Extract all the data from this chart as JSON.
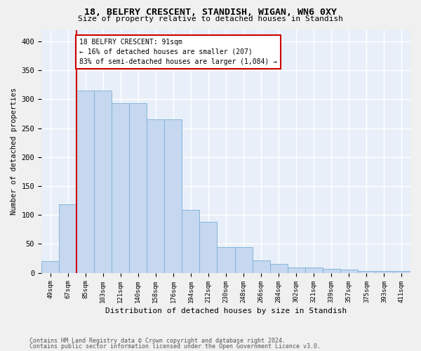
{
  "title1": "18, BELFRY CRESCENT, STANDISH, WIGAN, WN6 0XY",
  "title2": "Size of property relative to detached houses in Standish",
  "xlabel": "Distribution of detached houses by size in Standish",
  "ylabel": "Number of detached properties",
  "footer1": "Contains HM Land Registry data © Crown copyright and database right 2024.",
  "footer2": "Contains public sector information licensed under the Open Government Licence v3.0.",
  "bar_labels": [
    "49sqm",
    "67sqm",
    "85sqm",
    "103sqm",
    "121sqm",
    "140sqm",
    "158sqm",
    "176sqm",
    "194sqm",
    "212sqm",
    "230sqm",
    "248sqm",
    "266sqm",
    "284sqm",
    "302sqm",
    "321sqm",
    "339sqm",
    "357sqm",
    "375sqm",
    "393sqm",
    "411sqm"
  ],
  "bar_values": [
    20,
    119,
    315,
    315,
    293,
    293,
    265,
    265,
    109,
    88,
    44,
    44,
    21,
    15,
    9,
    9,
    7,
    5,
    3,
    3,
    3
  ],
  "bar_color": "#c5d8f0",
  "bar_edge_color": "#7bafd4",
  "bg_color": "#e8eff9",
  "grid_color": "#ffffff",
  "red_line_color": "#cc0000",
  "annotation_line1": "18 BELFRY CRESCENT: 91sqm",
  "annotation_line2": "← 16% of detached houses are smaller (207)",
  "annotation_line3": "83% of semi-detached houses are larger (1,084) →",
  "ylim": [
    0,
    420
  ],
  "yticks": [
    0,
    50,
    100,
    150,
    200,
    250,
    300,
    350,
    400
  ],
  "fig_bg": "#f0f0f0"
}
